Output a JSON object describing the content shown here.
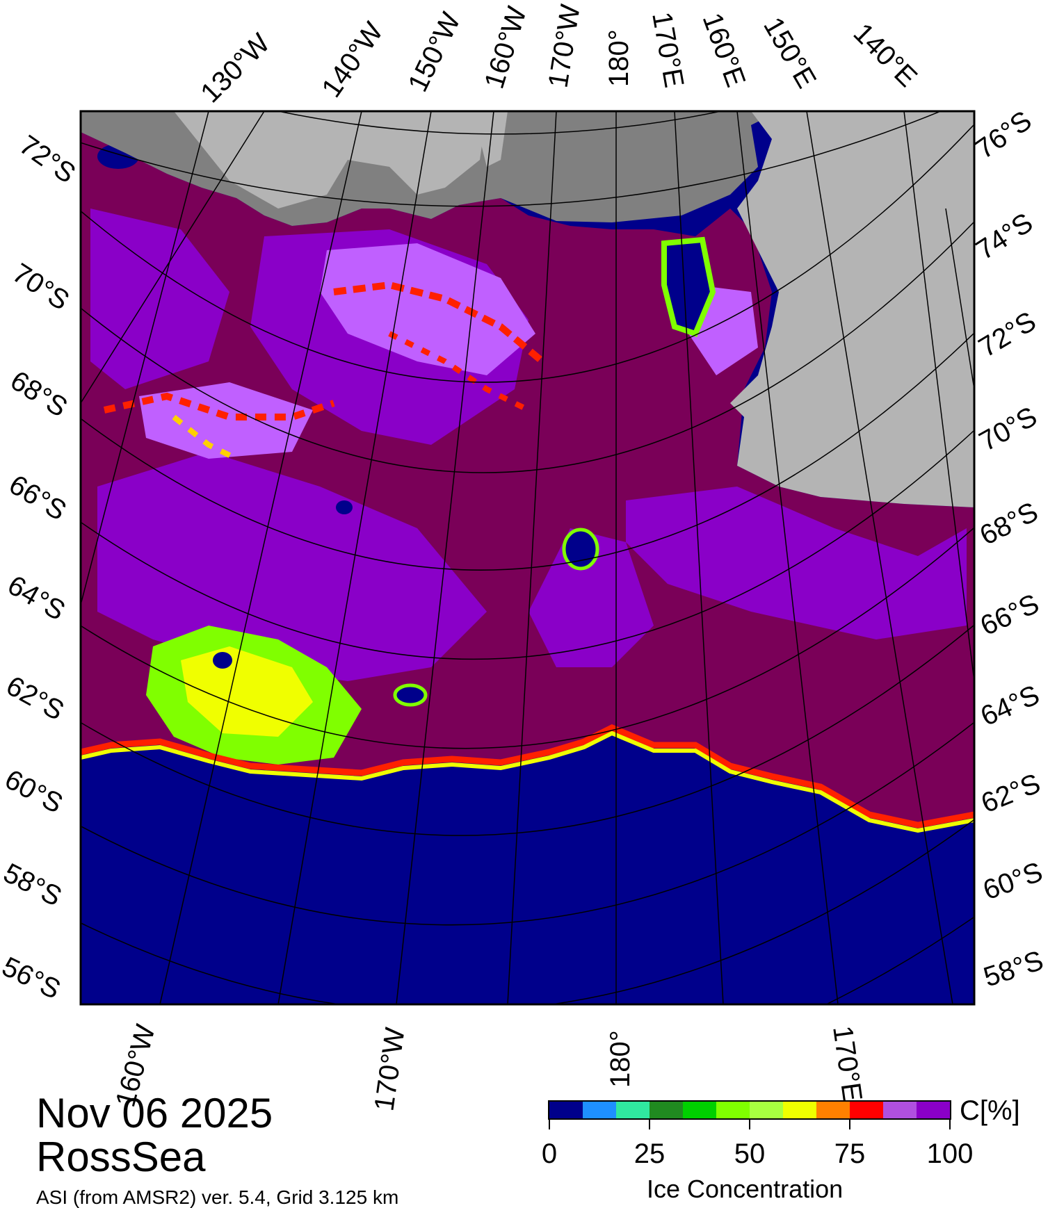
{
  "map": {
    "date": "Nov 06 2025",
    "region": "RossSea",
    "credit": "ASI (from AMSR2) ver. 5.4,  Grid 3.125 km",
    "colors": {
      "open_water": "#00008b",
      "land": "#b4b4b4",
      "ice_shelf": "#808080",
      "ice_full": "#7a0058",
      "ice_high": "#8a00c8",
      "ice_mid": "#c060ff",
      "ice_edge": "#ff2000"
    },
    "top_labels": [
      "130°W",
      "140°W",
      "150°W",
      "160°W",
      "170°W",
      "180°",
      "170°E",
      "160°E",
      "150°E",
      "140°E"
    ],
    "left_labels": [
      "72°S",
      "70°S",
      "68°S",
      "66°S",
      "64°S",
      "62°S",
      "60°S",
      "58°S",
      "56°S"
    ],
    "right_labels": [
      "76°S",
      "74°S",
      "72°S",
      "70°S",
      "68°S",
      "66°S",
      "64°S",
      "62°S",
      "60°S",
      "58°S"
    ],
    "bottom_labels": [
      "160°W",
      "170°W",
      "180°",
      "170°E"
    ]
  },
  "colorbar": {
    "unit": "C[%]",
    "title": "Ice Concentration",
    "ticks": [
      "0",
      "25",
      "50",
      "75",
      "100"
    ],
    "colors": [
      "#00008b",
      "#1e90ff",
      "#30e8a0",
      "#208a20",
      "#00d000",
      "#80ff00",
      "#a8ff40",
      "#f0ff00",
      "#ff8000",
      "#ff0000",
      "#b050e0",
      "#8a00c8"
    ]
  }
}
